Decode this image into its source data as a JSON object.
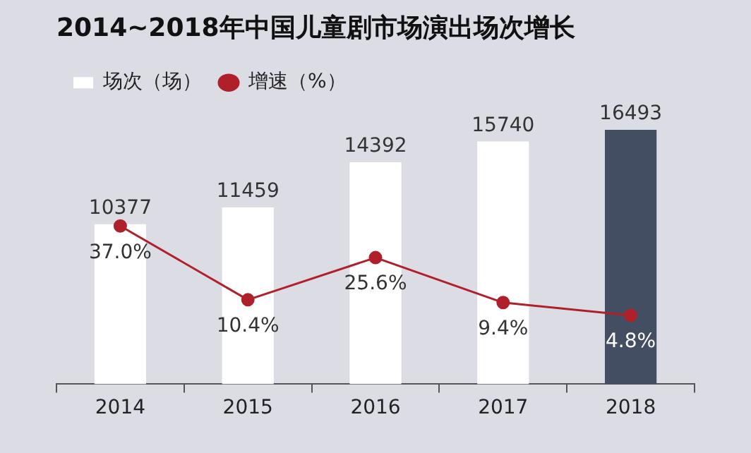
{
  "chart_data": {
    "type": "bar",
    "title": "2014~2018年中国儿童剧市场演出场次增长",
    "categories": [
      "2014",
      "2015",
      "2016",
      "2017",
      "2018"
    ],
    "series": [
      {
        "name": "场次（场）",
        "colors": [
          "#ffffff",
          "#ffffff",
          "#ffffff",
          "#ffffff",
          "#434e62"
        ],
        "values": [
          10377,
          11459,
          14392,
          15740,
          16493
        ],
        "value_labels": [
          "10377",
          "11459",
          "14392",
          "15740",
          "16493"
        ]
      },
      {
        "name": "增速（%）",
        "type": "line",
        "axis": "y2",
        "color": "#b0202a",
        "values": [
          37.0,
          10.4,
          25.6,
          9.4,
          4.8
        ],
        "value_labels": [
          "37.0%",
          "10.4%",
          "25.6%",
          "9.4%",
          "4.8%"
        ]
      }
    ],
    "tick_labels": "x",
    "legend": "top left",
    "grid": false,
    "marker": "circle",
    "line_style": "solid"
  }
}
